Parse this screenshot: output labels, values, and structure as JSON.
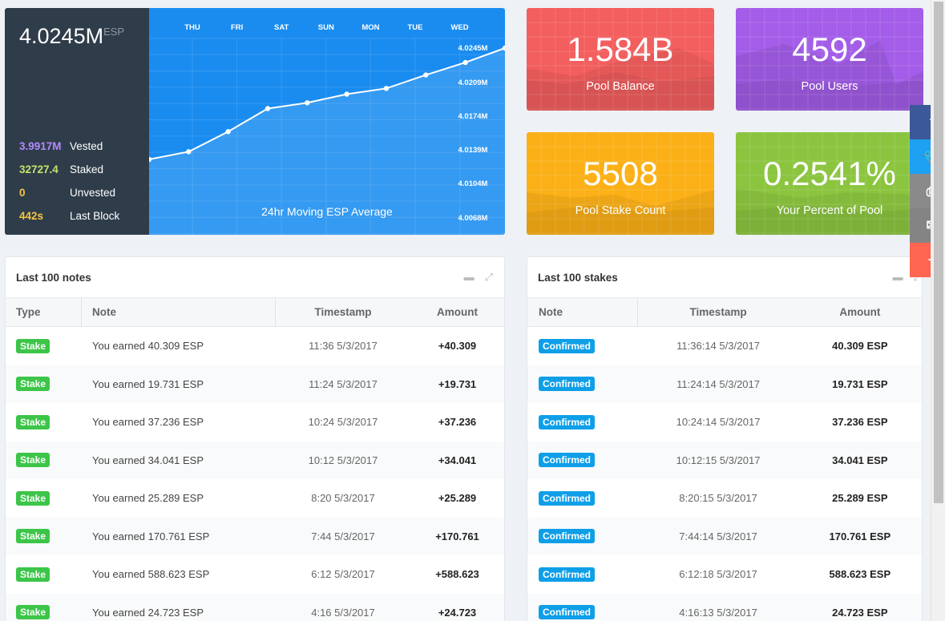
{
  "balance": {
    "value": "4.0245M",
    "unit": "ESP",
    "stats": [
      {
        "value": "3.9917M",
        "label": "Vested",
        "color": "#b388ff"
      },
      {
        "value": "32727.4",
        "label": "Staked",
        "color": "#c5e36e"
      },
      {
        "value": "0",
        "label": "Unvested",
        "color": "#f5c542"
      },
      {
        "value": "442s",
        "label": "Last Block",
        "color": "#f5c542"
      }
    ]
  },
  "chart_data": {
    "type": "line",
    "title": "24hr Moving ESP Average",
    "categories": [
      "THU",
      "FRI",
      "SAT",
      "SUN",
      "MON",
      "TUE",
      "WED"
    ],
    "y_ticks": [
      "4.0245M",
      "4.0209M",
      "4.0174M",
      "4.0139M",
      "4.0104M",
      "4.0068M"
    ],
    "y_tick_values": [
      4.0245,
      4.0209,
      4.0174,
      4.0139,
      4.0104,
      4.0068
    ],
    "x": [
      0,
      1,
      2,
      3,
      4,
      5,
      6,
      7,
      8,
      9
    ],
    "values": [
      4.0129,
      4.0137,
      4.0158,
      4.0182,
      4.0188,
      4.0197,
      4.0203,
      4.0217,
      4.023,
      4.0245
    ],
    "grid": true
  },
  "tiles": [
    {
      "value": "1.584B",
      "label": "Pool Balance",
      "color": "#f35e5e"
    },
    {
      "value": "4592",
      "label": "Pool Users",
      "color": "#a35de8"
    },
    {
      "value": "5508",
      "label": "Pool Stake Count",
      "color": "#fbb017"
    },
    {
      "value": "0.2541%",
      "label": "Your Percent of Pool",
      "color": "#8bc53f"
    }
  ],
  "social": [
    {
      "icon": "facebook-icon",
      "glyph": "f",
      "color": "#3b5998"
    },
    {
      "icon": "twitter-icon",
      "glyph": "🐦",
      "color": "#1da1f2"
    },
    {
      "icon": "print-icon",
      "glyph": "⎙",
      "color": "#8a8a8a"
    },
    {
      "icon": "email-icon",
      "glyph": "✉",
      "color": "#848484"
    },
    {
      "icon": "share-plus-icon",
      "glyph": "+",
      "color": "#ff6550"
    }
  ],
  "notes": {
    "title": "Last 100 notes",
    "columns": [
      "Type",
      "Note",
      "Timestamp",
      "Amount"
    ],
    "rows": [
      {
        "type": "Stake",
        "note": "You earned 40.309 ESP",
        "timestamp": "11:36 5/3/2017",
        "amount": "+40.309"
      },
      {
        "type": "Stake",
        "note": "You earned 19.731 ESP",
        "timestamp": "11:24 5/3/2017",
        "amount": "+19.731"
      },
      {
        "type": "Stake",
        "note": "You earned 37.236 ESP",
        "timestamp": "10:24 5/3/2017",
        "amount": "+37.236"
      },
      {
        "type": "Stake",
        "note": "You earned 34.041 ESP",
        "timestamp": "10:12 5/3/2017",
        "amount": "+34.041"
      },
      {
        "type": "Stake",
        "note": "You earned 25.289 ESP",
        "timestamp": "8:20 5/3/2017",
        "amount": "+25.289"
      },
      {
        "type": "Stake",
        "note": "You earned 170.761 ESP",
        "timestamp": "7:44 5/3/2017",
        "amount": "+170.761"
      },
      {
        "type": "Stake",
        "note": "You earned 588.623 ESP",
        "timestamp": "6:12 5/3/2017",
        "amount": "+588.623"
      },
      {
        "type": "Stake",
        "note": "You earned 24.723 ESP",
        "timestamp": "4:16 5/3/2017",
        "amount": "+24.723"
      }
    ]
  },
  "stakes": {
    "title": "Last 100 stakes",
    "columns": [
      "Note",
      "Timestamp",
      "Amount"
    ],
    "rows": [
      {
        "note": "Confirmed",
        "timestamp": "11:36:14 5/3/2017",
        "amount": "40.309 ESP"
      },
      {
        "note": "Confirmed",
        "timestamp": "11:24:14 5/3/2017",
        "amount": "19.731 ESP"
      },
      {
        "note": "Confirmed",
        "timestamp": "10:24:14 5/3/2017",
        "amount": "37.236 ESP"
      },
      {
        "note": "Confirmed",
        "timestamp": "10:12:15 5/3/2017",
        "amount": "34.041 ESP"
      },
      {
        "note": "Confirmed",
        "timestamp": "8:20:15 5/3/2017",
        "amount": "25.289 ESP"
      },
      {
        "note": "Confirmed",
        "timestamp": "7:44:14 5/3/2017",
        "amount": "170.761 ESP"
      },
      {
        "note": "Confirmed",
        "timestamp": "6:12:18 5/3/2017",
        "amount": "588.623 ESP"
      },
      {
        "note": "Confirmed",
        "timestamp": "4:16:13 5/3/2017",
        "amount": "24.723 ESP"
      }
    ]
  }
}
